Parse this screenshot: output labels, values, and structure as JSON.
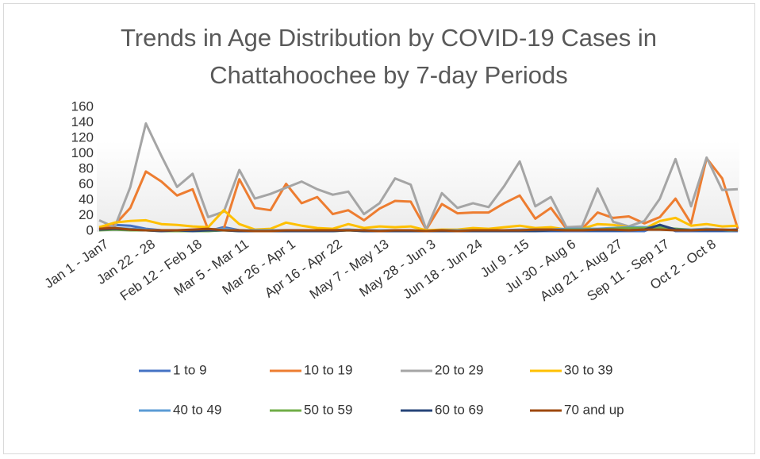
{
  "chart_data": {
    "type": "line",
    "title": "Trends in Age Distribution by COVID-19 Cases in Chattahoochee by 7-day Periods",
    "categories": [
      "Jan 1 - Jan7",
      null,
      null,
      "Jan 22 - 28",
      null,
      null,
      "Feb 12 - Feb 18",
      null,
      null,
      "Mar 5 - Mar 11",
      null,
      null,
      "Mar 26 - Apr 1",
      null,
      null,
      "Apr 16 - Apr 22",
      null,
      null,
      "May 7 - May 13",
      null,
      null,
      "May 28 - Jun 3",
      null,
      null,
      "Jun 18 - Jun 24",
      null,
      null,
      "Jul 9 - 15",
      null,
      null,
      "Jul 30 - Aug 6",
      null,
      null,
      "Aug 21 - Aug 27",
      null,
      null,
      "Sep 11 - Sep 17",
      null,
      null,
      "Oct 2 - Oct 8",
      null,
      null
    ],
    "ylim": [
      0,
      160
    ],
    "yticks": [
      0,
      20,
      40,
      60,
      80,
      100,
      120,
      140,
      160
    ],
    "legend": "bottom",
    "series": [
      {
        "name": "1 to 9",
        "color": "#4472c4",
        "values": [
          1,
          8,
          7,
          3,
          1,
          0,
          1,
          0,
          5,
          1,
          0,
          0,
          0,
          0,
          0,
          1,
          2,
          0,
          0,
          0,
          0,
          0,
          0,
          0,
          0,
          0,
          0,
          0,
          0,
          0,
          0,
          0,
          0,
          0,
          0,
          0,
          8,
          0,
          0,
          0,
          0,
          0
        ]
      },
      {
        "name": "10 to 19",
        "color": "#ed7d31",
        "values": [
          3,
          8,
          30,
          77,
          64,
          46,
          54,
          2,
          3,
          67,
          30,
          27,
          61,
          36,
          44,
          22,
          27,
          14,
          29,
          39,
          38,
          2,
          35,
          23,
          24,
          24,
          36,
          46,
          16,
          30,
          3,
          3,
          24,
          17,
          19,
          10,
          18,
          42,
          10,
          94,
          68,
          3
        ]
      },
      {
        "name": "20 to 29",
        "color": "#a5a5a5",
        "values": [
          14,
          5,
          57,
          139,
          97,
          57,
          74,
          18,
          25,
          79,
          42,
          48,
          56,
          64,
          54,
          47,
          51,
          22,
          36,
          68,
          60,
          2,
          49,
          30,
          36,
          31,
          58,
          90,
          32,
          44,
          5,
          6,
          55,
          12,
          6,
          13,
          42,
          93,
          32,
          95,
          53,
          54
        ]
      },
      {
        "name": "30 to 39",
        "color": "#ffc000",
        "values": [
          5,
          11,
          13,
          14,
          9,
          8,
          6,
          5,
          27,
          9,
          2,
          3,
          11,
          7,
          4,
          3,
          9,
          4,
          6,
          5,
          6,
          1,
          2,
          2,
          4,
          3,
          5,
          7,
          4,
          5,
          2,
          3,
          9,
          8,
          5,
          3,
          13,
          17,
          7,
          9,
          6,
          7
        ]
      },
      {
        "name": "40 to 49",
        "color": "#5b9bd5",
        "values": [
          2,
          4,
          3,
          2,
          1,
          1,
          1,
          2,
          3,
          1,
          1,
          1,
          1,
          1,
          1,
          1,
          2,
          1,
          1,
          1,
          1,
          0,
          1,
          1,
          1,
          1,
          1,
          2,
          2,
          2,
          3,
          3,
          3,
          4,
          5,
          5,
          4,
          3,
          2,
          3,
          2,
          2
        ]
      },
      {
        "name": "50 to 59",
        "color": "#70ad47",
        "values": [
          1,
          2,
          1,
          1,
          0,
          0,
          0,
          0,
          1,
          0,
          0,
          0,
          0,
          0,
          0,
          0,
          1,
          0,
          0,
          0,
          0,
          0,
          0,
          0,
          0,
          0,
          0,
          1,
          1,
          1,
          2,
          2,
          2,
          3,
          4,
          4,
          5,
          3,
          1,
          2,
          1,
          1
        ]
      },
      {
        "name": "60 to 69",
        "color": "#264478",
        "values": [
          2,
          3,
          2,
          1,
          0,
          1,
          0,
          1,
          1,
          0,
          0,
          0,
          0,
          0,
          0,
          0,
          1,
          0,
          0,
          0,
          0,
          0,
          0,
          0,
          0,
          0,
          0,
          0,
          0,
          1,
          1,
          1,
          1,
          1,
          1,
          2,
          8,
          2,
          1,
          1,
          1,
          2
        ]
      },
      {
        "name": "70 and up",
        "color": "#9e480e",
        "values": [
          3,
          4,
          2,
          1,
          1,
          1,
          2,
          3,
          1,
          1,
          0,
          0,
          1,
          1,
          1,
          1,
          1,
          1,
          0,
          1,
          1,
          0,
          1,
          0,
          1,
          1,
          1,
          1,
          2,
          2,
          1,
          1,
          2,
          2,
          1,
          2,
          2,
          1,
          1,
          2,
          2,
          1
        ]
      }
    ]
  }
}
